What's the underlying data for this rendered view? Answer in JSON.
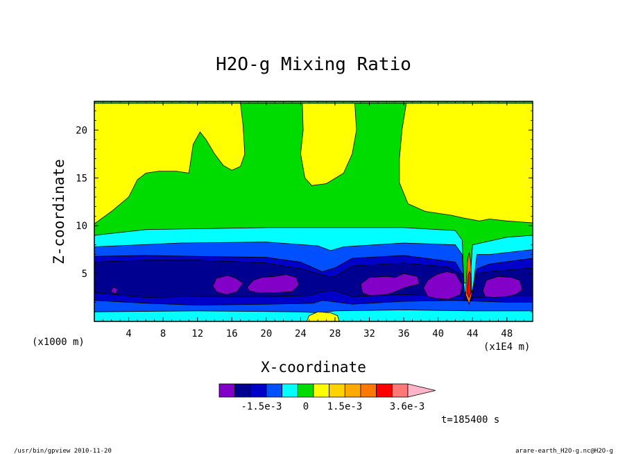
{
  "chart_data": {
    "type": "heatmap",
    "title": "H2O-g Mixing Ratio",
    "xlabel": "X-coordinate",
    "ylabel": "Z-coordinate",
    "x_unit_label": "(x1E4 m)",
    "y_unit_label": "(x1000 m)",
    "x_ticks": [
      "4",
      "8",
      "12",
      "16",
      "20",
      "24",
      "28",
      "32",
      "36",
      "40",
      "44",
      "48"
    ],
    "y_ticks": [
      "5",
      "10",
      "15",
      "20"
    ],
    "xlim": [
      0,
      51
    ],
    "ylim": [
      0,
      23
    ],
    "contour_regions": [
      {
        "level": "0 to 0.5e-3 (yellow)",
        "color": "#ffff00",
        "points": [
          [
            0,
            10.2
          ],
          [
            2,
            11.5
          ],
          [
            4,
            13
          ],
          [
            5,
            14.8
          ],
          [
            6,
            15.5
          ],
          [
            7.5,
            15.7
          ],
          [
            9.5,
            15.7
          ],
          [
            11,
            15.5
          ],
          [
            11.5,
            18.5
          ],
          [
            12.3,
            19.8
          ],
          [
            13,
            19
          ],
          [
            14,
            17.5
          ],
          [
            15,
            16.3
          ],
          [
            16,
            15.8
          ],
          [
            17,
            16.2
          ],
          [
            17.5,
            17.5
          ],
          [
            17.3,
            20.5
          ],
          [
            17,
            22.8
          ],
          [
            24.2,
            22.8
          ],
          [
            24.3,
            20
          ],
          [
            24,
            17.5
          ],
          [
            24.5,
            15
          ],
          [
            25.3,
            14.2
          ],
          [
            27,
            14.4
          ],
          [
            29,
            15.5
          ],
          [
            30,
            17.5
          ],
          [
            30.5,
            20
          ],
          [
            30.3,
            22.8
          ],
          [
            36.3,
            22.8
          ],
          [
            35.8,
            20
          ],
          [
            35.5,
            17
          ],
          [
            35.5,
            14.5
          ],
          [
            36.5,
            12.3
          ],
          [
            38.5,
            11.5
          ],
          [
            41.5,
            11.1
          ],
          [
            43,
            10.8
          ],
          [
            44.8,
            10.5
          ],
          [
            46,
            10.7
          ],
          [
            48,
            10.5
          ],
          [
            51,
            10.3
          ],
          [
            51,
            22.8
          ],
          [
            0,
            22.8
          ]
        ]
      },
      {
        "level": "-0.5e-3 to 0 (cyan)",
        "color": "#00ffff",
        "points": [
          [
            0,
            9
          ],
          [
            6,
            9.6
          ],
          [
            20,
            9.8
          ],
          [
            36,
            9.8
          ],
          [
            42,
            9.5
          ],
          [
            42.8,
            8.5
          ],
          [
            43,
            4
          ],
          [
            43.7,
            4
          ],
          [
            44,
            8
          ],
          [
            45,
            8.2
          ],
          [
            48,
            8.8
          ],
          [
            51,
            9
          ],
          [
            51,
            0
          ],
          [
            0,
            0
          ]
        ]
      },
      {
        "level": "-1.0e-3 to -0.5e-3 (blue)",
        "color": "#0050ff",
        "points": [
          [
            0,
            7.8
          ],
          [
            10,
            8.2
          ],
          [
            20,
            8.3
          ],
          [
            26,
            7.9
          ],
          [
            27.5,
            7.4
          ],
          [
            29,
            7.8
          ],
          [
            36,
            8.2
          ],
          [
            42,
            8
          ],
          [
            42.8,
            7
          ],
          [
            43,
            3
          ],
          [
            44,
            3
          ],
          [
            44.5,
            7
          ],
          [
            46,
            7
          ],
          [
            51,
            7.5
          ],
          [
            51,
            1.1
          ],
          [
            44,
            1.1
          ],
          [
            36,
            1.2
          ],
          [
            28,
            1.1
          ],
          [
            26,
            0.9
          ],
          [
            24,
            1
          ],
          [
            12,
            1.1
          ],
          [
            0,
            1
          ]
        ]
      },
      {
        "level": "-1.5e-3 to -1.0e-3 (dark blue)",
        "color": "#0000c8",
        "points": [
          [
            0,
            6.8
          ],
          [
            6,
            6.9
          ],
          [
            12,
            6.8
          ],
          [
            20,
            6.7
          ],
          [
            24,
            6.2
          ],
          [
            26.5,
            5.2
          ],
          [
            28,
            5.6
          ],
          [
            30,
            6.6
          ],
          [
            36,
            6.9
          ],
          [
            42,
            6.2
          ],
          [
            42.8,
            5
          ],
          [
            43.2,
            2.5
          ],
          [
            43.8,
            2.5
          ],
          [
            44.5,
            5.5
          ],
          [
            46,
            6
          ],
          [
            51,
            6.6
          ],
          [
            51,
            2
          ],
          [
            48,
            2
          ],
          [
            45,
            2.1
          ],
          [
            42,
            2.2
          ],
          [
            36,
            2.1
          ],
          [
            30,
            1.8
          ],
          [
            27.5,
            2.1
          ],
          [
            26.5,
            2.2
          ],
          [
            25.5,
            1.9
          ],
          [
            20,
            1.8
          ],
          [
            12,
            1.7
          ],
          [
            6,
            1.9
          ],
          [
            0,
            2.2
          ]
        ]
      },
      {
        "level": "-2.0e-3 to -1.5e-3 (navy)",
        "color": "#000090",
        "points": [
          [
            0,
            6.2
          ],
          [
            6,
            6.4
          ],
          [
            12,
            6.4
          ],
          [
            20,
            6.1
          ],
          [
            24,
            5.5
          ],
          [
            26.7,
            4.8
          ],
          [
            28,
            4.7
          ],
          [
            30,
            5.8
          ],
          [
            36,
            6.1
          ],
          [
            41,
            5.7
          ],
          [
            42.5,
            5
          ],
          [
            43,
            2.2
          ],
          [
            43.9,
            2.2
          ],
          [
            44.5,
            5
          ],
          [
            46,
            5.2
          ],
          [
            51,
            5.6
          ],
          [
            51,
            2.7
          ],
          [
            48,
            2.7
          ],
          [
            45,
            2.5
          ],
          [
            42,
            2.6
          ],
          [
            36,
            2.8
          ],
          [
            30,
            2.6
          ],
          [
            28,
            3.2
          ],
          [
            26.5,
            3.1
          ],
          [
            25,
            2.7
          ],
          [
            20,
            2.6
          ],
          [
            12,
            2.6
          ],
          [
            6,
            2.5
          ],
          [
            0,
            3
          ]
        ]
      },
      {
        "level": "below -2.5e-3 (purple) A",
        "color": "#8200c8",
        "points": [
          [
            13.8,
            3.7
          ],
          [
            14.2,
            4.5
          ],
          [
            15.5,
            4.8
          ],
          [
            16.5,
            4.5
          ],
          [
            17.3,
            4
          ],
          [
            16.6,
            3.1
          ],
          [
            15.3,
            2.8
          ],
          [
            14.2,
            3.1
          ]
        ]
      },
      {
        "level": "below -2.5e-3 (purple) B",
        "color": "#8200c8",
        "points": [
          [
            17.8,
            3.6
          ],
          [
            18.5,
            4.3
          ],
          [
            19.5,
            4.6
          ],
          [
            21,
            4.7
          ],
          [
            22.3,
            4.9
          ],
          [
            23.5,
            4.6
          ],
          [
            23.8,
            3.8
          ],
          [
            23,
            3.1
          ],
          [
            21,
            3
          ],
          [
            19,
            3
          ],
          [
            18,
            3.2
          ]
        ]
      },
      {
        "level": "below -2.5e-3 (purple) C",
        "color": "#8200c8",
        "points": [
          [
            31,
            3.9
          ],
          [
            32,
            4.6
          ],
          [
            34,
            4.7
          ],
          [
            35,
            4.6
          ],
          [
            36,
            5
          ],
          [
            37.6,
            4.7
          ],
          [
            37.8,
            3.9
          ],
          [
            36,
            3.5
          ],
          [
            35,
            3.1
          ],
          [
            34,
            2.8
          ],
          [
            32,
            2.7
          ],
          [
            31.2,
            3
          ]
        ]
      },
      {
        "level": "below -2.5e-3 (purple) D",
        "color": "#8200c8",
        "points": [
          [
            38.3,
            3.5
          ],
          [
            38.8,
            4.3
          ],
          [
            39.8,
            4.9
          ],
          [
            41,
            5.2
          ],
          [
            42,
            5
          ],
          [
            42.8,
            3.8
          ],
          [
            42.6,
            2.8
          ],
          [
            41.2,
            2.3
          ],
          [
            39.8,
            2.4
          ],
          [
            38.8,
            2.6
          ]
        ]
      },
      {
        "level": "below -2.5e-3 (purple) E",
        "color": "#8200c8",
        "points": [
          [
            45.2,
            3.2
          ],
          [
            45.6,
            4.3
          ],
          [
            47,
            4.7
          ],
          [
            48.5,
            4.6
          ],
          [
            49.5,
            4.3
          ],
          [
            49.8,
            3.3
          ],
          [
            49,
            2.8
          ],
          [
            48,
            2.6
          ],
          [
            46.5,
            2.5
          ],
          [
            45.5,
            2.6
          ]
        ]
      },
      {
        "level": "below -2.5e-3 (purple) F",
        "color": "#8200c8",
        "points": [
          [
            1.9,
            3.1
          ],
          [
            2.2,
            3.6
          ],
          [
            2.7,
            3.4
          ],
          [
            2.5,
            2.9
          ]
        ]
      },
      {
        "level": "0 to 0.5e-3 (yellow) base",
        "color": "#ffff00",
        "points": [
          [
            24.7,
            0
          ],
          [
            25,
            0.6
          ],
          [
            26,
            1
          ],
          [
            27.5,
            0.9
          ],
          [
            28.3,
            0.6
          ],
          [
            28.5,
            0
          ]
        ]
      },
      {
        "level": "above 3.6e-3 (pink/red)",
        "color": "#ff6a00",
        "points": [
          [
            43.2,
            2.8
          ],
          [
            43.4,
            6.3
          ],
          [
            43.6,
            7.2
          ],
          [
            43.8,
            6.3
          ],
          [
            43.9,
            2.8
          ],
          [
            43.6,
            1.8
          ]
        ]
      },
      {
        "level": "max (red)",
        "color": "#ff0000",
        "points": [
          [
            43.35,
            3
          ],
          [
            43.5,
            4.9
          ],
          [
            43.65,
            5.2
          ],
          [
            43.8,
            4.9
          ],
          [
            43.8,
            3
          ],
          [
            43.6,
            2.5
          ]
        ]
      }
    ],
    "plot_background": "#00dc00",
    "base_strip_color": "#00ffff",
    "colorbar": {
      "colors": [
        "#8200c8",
        "#000090",
        "#0000c8",
        "#0050ff",
        "#00ffff",
        "#00dc00",
        "#ffff00",
        "#ffd200",
        "#ffaa00",
        "#ff7800",
        "#ff0000",
        "#ff7878"
      ],
      "extend_color": "#ffb4c8",
      "labels": [
        "-1.5e-3",
        "0",
        "1.5e-3",
        "3.6e-3"
      ]
    }
  },
  "footer": {
    "time": "t=185400 s",
    "left": "/usr/bin/gpview  2010-11-20",
    "right": "arare-earth_H2O-g.nc@H2O-g"
  }
}
